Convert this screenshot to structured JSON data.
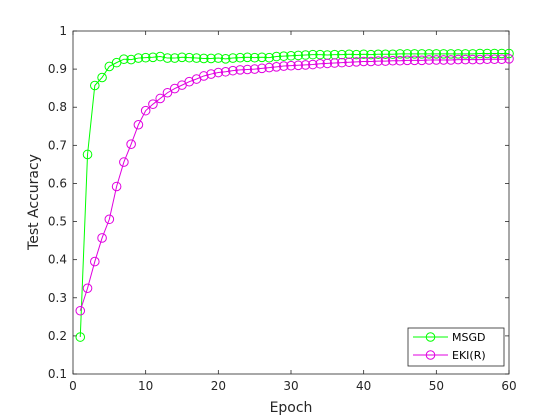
{
  "chart_data": {
    "type": "line",
    "title": "",
    "xlabel": "Epoch",
    "ylabel": "Test Accuracy",
    "xlim": [
      0,
      60
    ],
    "ylim": [
      0.1,
      1
    ],
    "xticks": [
      0,
      10,
      20,
      30,
      40,
      50,
      60
    ],
    "yticks": [
      0.1,
      0.2,
      0.3,
      0.4,
      0.5,
      0.6,
      0.7,
      0.8,
      0.9,
      1
    ],
    "grid": false,
    "legend_position": "bottom-right",
    "x": [
      1,
      2,
      3,
      4,
      5,
      6,
      7,
      8,
      9,
      10,
      11,
      12,
      13,
      14,
      15,
      16,
      17,
      18,
      19,
      20,
      21,
      22,
      23,
      24,
      25,
      26,
      27,
      28,
      29,
      30,
      31,
      32,
      33,
      34,
      35,
      36,
      37,
      38,
      39,
      40,
      41,
      42,
      43,
      44,
      45,
      46,
      47,
      48,
      49,
      50,
      51,
      52,
      53,
      54,
      55,
      56,
      57,
      58,
      59,
      60
    ],
    "series": [
      {
        "name": "MSGD",
        "color": "#00ff00",
        "marker": "circle",
        "values": [
          0.197,
          0.676,
          0.857,
          0.878,
          0.907,
          0.917,
          0.926,
          0.925,
          0.929,
          0.93,
          0.931,
          0.933,
          0.929,
          0.929,
          0.931,
          0.93,
          0.929,
          0.928,
          0.928,
          0.929,
          0.927,
          0.929,
          0.93,
          0.931,
          0.93,
          0.931,
          0.93,
          0.933,
          0.934,
          0.935,
          0.936,
          0.937,
          0.938,
          0.938,
          0.937,
          0.938,
          0.938,
          0.939,
          0.938,
          0.939,
          0.938,
          0.939,
          0.939,
          0.939,
          0.94,
          0.94,
          0.94,
          0.94,
          0.94,
          0.94,
          0.94,
          0.94,
          0.94,
          0.94,
          0.94,
          0.941,
          0.941,
          0.941,
          0.941,
          0.941
        ]
      },
      {
        "name": "EKI(R)",
        "color": "#e000e0",
        "marker": "circle",
        "values": [
          0.266,
          0.325,
          0.395,
          0.457,
          0.506,
          0.592,
          0.656,
          0.703,
          0.754,
          0.791,
          0.808,
          0.823,
          0.838,
          0.849,
          0.858,
          0.867,
          0.874,
          0.882,
          0.887,
          0.891,
          0.893,
          0.896,
          0.898,
          0.899,
          0.9,
          0.902,
          0.904,
          0.906,
          0.908,
          0.909,
          0.91,
          0.911,
          0.912,
          0.914,
          0.915,
          0.916,
          0.917,
          0.918,
          0.919,
          0.92,
          0.92,
          0.921,
          0.921,
          0.922,
          0.922,
          0.923,
          0.923,
          0.923,
          0.924,
          0.924,
          0.924,
          0.924,
          0.925,
          0.925,
          0.925,
          0.925,
          0.926,
          0.926,
          0.926,
          0.927
        ]
      }
    ]
  }
}
